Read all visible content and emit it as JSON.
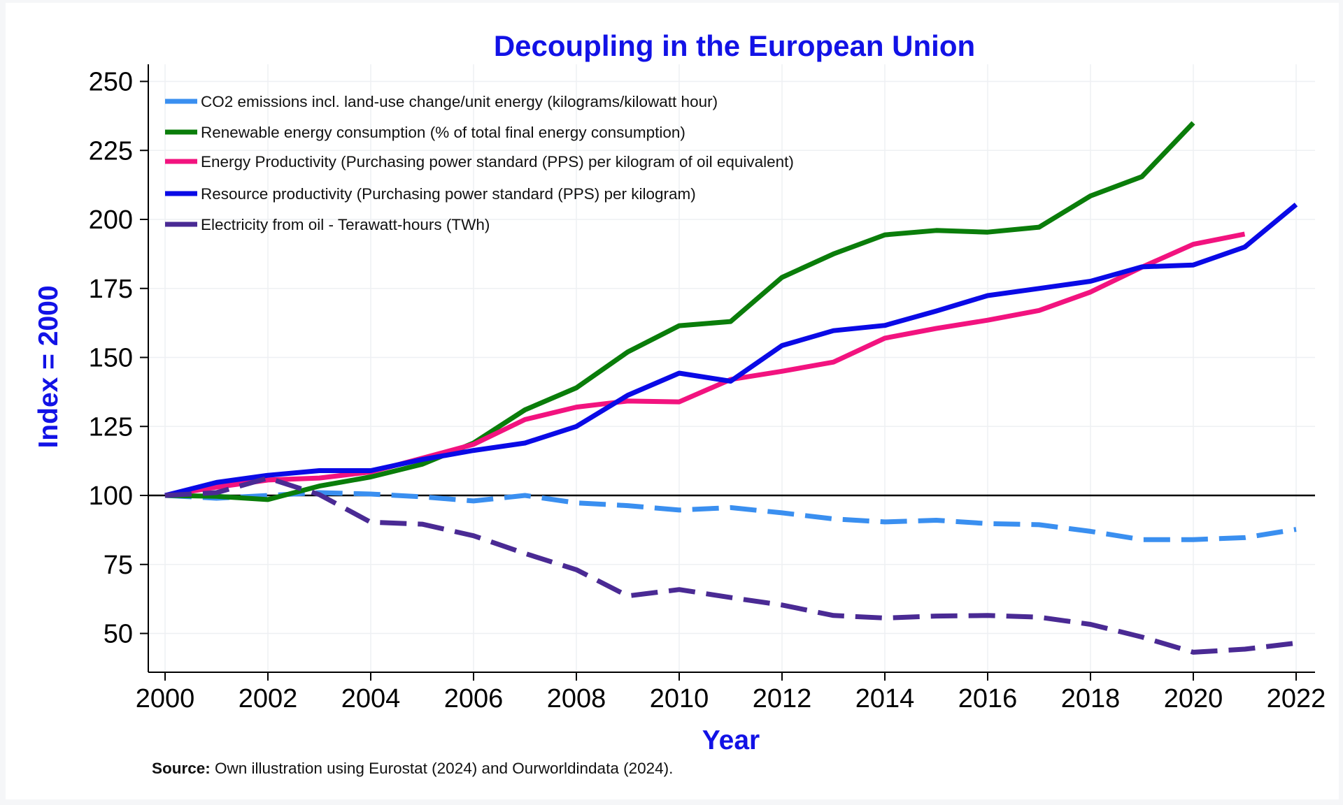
{
  "chart_data": {
    "type": "line",
    "title": "Decoupling in the European Union",
    "xlabel": "Year",
    "ylabel": "Index = 2000",
    "xlim": [
      2000,
      2022
    ],
    "ylim": [
      35,
      260
    ],
    "x_ticks": [
      2000,
      2002,
      2004,
      2006,
      2008,
      2010,
      2012,
      2014,
      2016,
      2018,
      2020,
      2022
    ],
    "y_ticks": [
      50,
      75,
      100,
      125,
      150,
      175,
      200,
      225,
      250
    ],
    "x_tick_labels": [
      "2000",
      "2002",
      "2004",
      "2006",
      "2008",
      "2010",
      "2012",
      "2014",
      "2016",
      "2018",
      "2020",
      "2022"
    ],
    "y_tick_labels": [
      "50",
      "75",
      "100",
      "125",
      "150",
      "175",
      "200",
      "225",
      "250"
    ],
    "reference_line": 100,
    "grid": true,
    "legend_position": "top-left",
    "series": [
      {
        "name": "CO2 emissions incl. land-use change/unit energy (kilograms/kilowatt hour)",
        "color": "#3a8ff0",
        "dash": "dashed",
        "x": [
          2000,
          2001,
          2002,
          2003,
          2004,
          2005,
          2006,
          2007,
          2008,
          2009,
          2010,
          2011,
          2012,
          2013,
          2014,
          2015,
          2016,
          2017,
          2018,
          2019,
          2020,
          2021,
          2022
        ],
        "values": [
          100,
          99,
          100,
          101,
          100.5,
          99.5,
          98,
          100,
          97.3,
          96.3,
          94.7,
          95.6,
          93.7,
          91.5,
          90.4,
          91,
          89.8,
          89.4,
          87,
          84,
          84,
          84.7,
          87.7
        ]
      },
      {
        "name": "Renewable energy consumption (% of total final energy consumption)",
        "color": "#0a7d0a",
        "dash": "solid",
        "x": [
          2000,
          2001,
          2002,
          2003,
          2004,
          2005,
          2006,
          2007,
          2008,
          2009,
          2010,
          2011,
          2012,
          2013,
          2014,
          2015,
          2016,
          2017,
          2018,
          2019,
          2020
        ],
        "values": [
          100,
          99.7,
          98.5,
          103.4,
          106.7,
          111.3,
          119,
          131,
          139,
          152,
          161.5,
          163,
          179,
          187.5,
          194.4,
          196,
          195.4,
          197.2,
          208.5,
          215.5,
          235
        ]
      },
      {
        "name": "Energy Productivity (Purchasing power standard (PPS) per kilogram of oil equivalent)",
        "color": "#f2137f",
        "dash": "solid",
        "x": [
          2000,
          2001,
          2002,
          2003,
          2004,
          2005,
          2006,
          2007,
          2008,
          2009,
          2010,
          2011,
          2012,
          2013,
          2014,
          2015,
          2016,
          2017,
          2018,
          2019,
          2020,
          2021
        ],
        "values": [
          100,
          103,
          105.6,
          106.3,
          108.5,
          113.5,
          118.5,
          127.5,
          132,
          134.2,
          133.9,
          142,
          145,
          148.3,
          157,
          160.5,
          163.5,
          167,
          173.7,
          182.7,
          191,
          194.7
        ]
      },
      {
        "name": "Resource productivity  (Purchasing power standard (PPS) per kilogram)",
        "color": "#0a0ae6",
        "dash": "solid",
        "x": [
          2000,
          2001,
          2002,
          2003,
          2004,
          2005,
          2006,
          2007,
          2008,
          2009,
          2010,
          2011,
          2012,
          2013,
          2014,
          2015,
          2016,
          2017,
          2018,
          2019,
          2020,
          2021,
          2022
        ],
        "values": [
          100,
          104.7,
          107.3,
          109,
          109,
          113,
          116.3,
          119,
          125,
          136.3,
          144.3,
          141.4,
          154.3,
          159.7,
          161.6,
          166.8,
          172.4,
          175,
          177.6,
          182.8,
          183.5,
          190,
          205.4
        ]
      },
      {
        "name": "Electricity from oil - Terawatt-hours (TWh)",
        "color": "#4a2a94",
        "dash": "dashed",
        "x": [
          2000,
          2001,
          2002,
          2003,
          2004,
          2005,
          2006,
          2007,
          2008,
          2009,
          2010,
          2011,
          2012,
          2013,
          2014,
          2015,
          2016,
          2017,
          2018,
          2019,
          2020,
          2021,
          2022
        ],
        "values": [
          100,
          101,
          106.3,
          100.3,
          90.3,
          89.6,
          85.4,
          79,
          73.1,
          63.6,
          65.9,
          63,
          60.3,
          56.5,
          55.6,
          56.3,
          56.5,
          55.9,
          53.3,
          48.7,
          43.2,
          44.3,
          46.5
        ]
      }
    ]
  },
  "note": {
    "label": "Source:",
    "text": " Own illustration using Eurostat (2024)  and Ourworldindata (2024)."
  }
}
